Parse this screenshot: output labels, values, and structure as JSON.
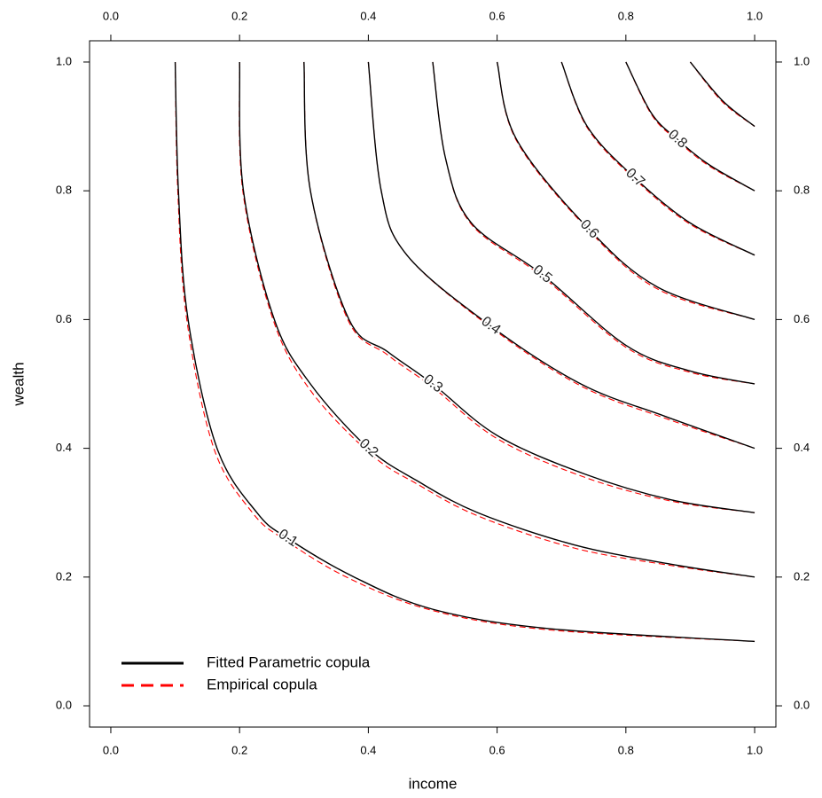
{
  "chart_data": {
    "type": "contour",
    "xlabel": "income",
    "ylabel": "wealth",
    "xlim": [
      -0.033,
      1.033
    ],
    "ylim": [
      -0.033,
      1.033
    ],
    "xticks": [
      {
        "value": 0,
        "label": "0.0"
      },
      {
        "value": 0.2,
        "label": "0.2"
      },
      {
        "value": 0.4,
        "label": "0.4"
      },
      {
        "value": 0.6,
        "label": "0.6"
      },
      {
        "value": 0.8,
        "label": "0.8"
      },
      {
        "value": 1,
        "label": "1.0"
      }
    ],
    "yticks": [
      {
        "value": 0,
        "label": "0.0"
      },
      {
        "value": 0.2,
        "label": "0.2"
      },
      {
        "value": 0.4,
        "label": "0.4"
      },
      {
        "value": 0.6,
        "label": "0.6"
      },
      {
        "value": 0.8,
        "label": "0.8"
      },
      {
        "value": 1,
        "label": "1.0"
      }
    ],
    "legend": "lower left",
    "series": [
      {
        "name": "Fitted Parametric copula",
        "color": "#000000",
        "dashed": false,
        "contours": [
          {
            "level": 0.1,
            "labeled": true,
            "x": [
              0.1,
              0.105,
              0.12,
              0.165,
              0.227,
              0.275,
              0.378,
              0.5,
              0.68,
              1.0
            ],
            "y": [
              1.0,
              0.8,
              0.6,
              0.4,
              0.3,
              0.26,
              0.2,
              0.15,
              0.12,
              0.1
            ]
          },
          {
            "level": 0.2,
            "labeled": true,
            "x": [
              0.2,
              0.206,
              0.254,
              0.31,
              0.4,
              0.475,
              0.57,
              0.72,
              0.87,
              1.0
            ],
            "y": [
              1.0,
              0.8,
              0.6,
              0.5,
              0.4,
              0.35,
              0.3,
              0.25,
              0.22,
              0.2
            ]
          },
          {
            "level": 0.3,
            "labeled": true,
            "x": [
              0.3,
              0.31,
              0.37,
              0.43,
              0.5,
              0.6,
              0.736,
              0.87,
              1.0
            ],
            "y": [
              1.0,
              0.8,
              0.6,
              0.55,
              0.5,
              0.42,
              0.36,
              0.32,
              0.3
            ]
          },
          {
            "level": 0.4,
            "labeled": true,
            "x": [
              0.4,
              0.42,
              0.46,
              0.59,
              0.73,
              0.86,
              1.0
            ],
            "y": [
              1.0,
              0.8,
              0.7,
              0.59,
              0.5,
              0.45,
              0.4
            ]
          },
          {
            "level": 0.5,
            "labeled": true,
            "x": [
              0.5,
              0.52,
              0.56,
              0.67,
              0.8,
              0.9,
              1.0
            ],
            "y": [
              1.0,
              0.85,
              0.75,
              0.67,
              0.56,
              0.52,
              0.5
            ]
          },
          {
            "level": 0.6,
            "labeled": true,
            "x": [
              0.6,
              0.63,
              0.743,
              0.85,
              1.0
            ],
            "y": [
              1.0,
              0.88,
              0.74,
              0.65,
              0.6
            ]
          },
          {
            "level": 0.7,
            "labeled": true,
            "x": [
              0.7,
              0.74,
              0.814,
              0.9,
              1.0
            ],
            "y": [
              1.0,
              0.9,
              0.82,
              0.75,
              0.7
            ]
          },
          {
            "level": 0.8,
            "labeled": true,
            "x": [
              0.8,
              0.84,
              0.88,
              0.93,
              1.0
            ],
            "y": [
              1.0,
              0.92,
              0.88,
              0.84,
              0.8
            ]
          },
          {
            "level": 0.9,
            "labeled": false,
            "x": [
              0.9,
              0.95,
              1.0
            ],
            "y": [
              1.0,
              0.94,
              0.9
            ]
          }
        ]
      },
      {
        "name": "Empirical copula",
        "color": "#ff0000",
        "dashed": true,
        "contours": [
          {
            "level": 0.1,
            "labeled": false,
            "x": [
              0.1,
              0.104,
              0.118,
              0.16,
              0.22,
              0.27,
              0.37,
              0.5,
              0.68,
              1.0
            ],
            "y": [
              1.0,
              0.8,
              0.6,
              0.4,
              0.3,
              0.258,
              0.198,
              0.148,
              0.118,
              0.1
            ]
          },
          {
            "level": 0.2,
            "labeled": false,
            "x": [
              0.2,
              0.205,
              0.252,
              0.31,
              0.405,
              0.475,
              0.57,
              0.72,
              0.87,
              1.0
            ],
            "y": [
              1.0,
              0.8,
              0.6,
              0.49,
              0.39,
              0.345,
              0.295,
              0.245,
              0.218,
              0.2
            ]
          },
          {
            "level": 0.3,
            "labeled": false,
            "x": [
              0.3,
              0.31,
              0.368,
              0.43,
              0.5,
              0.6,
              0.736,
              0.87,
              1.0
            ],
            "y": [
              1.0,
              0.8,
              0.6,
              0.545,
              0.495,
              0.415,
              0.355,
              0.318,
              0.3
            ]
          },
          {
            "level": 0.4,
            "labeled": false,
            "x": [
              0.4,
              0.42,
              0.46,
              0.59,
              0.73,
              0.86,
              1.0
            ],
            "y": [
              1.0,
              0.8,
              0.7,
              0.588,
              0.497,
              0.447,
              0.4
            ]
          },
          {
            "level": 0.5,
            "labeled": false,
            "x": [
              0.5,
              0.52,
              0.56,
              0.67,
              0.8,
              0.9,
              1.0
            ],
            "y": [
              1.0,
              0.85,
              0.748,
              0.667,
              0.557,
              0.518,
              0.5
            ]
          },
          {
            "level": 0.6,
            "labeled": false,
            "x": [
              0.6,
              0.63,
              0.743,
              0.85,
              1.0
            ],
            "y": [
              1.0,
              0.878,
              0.738,
              0.647,
              0.6
            ]
          },
          {
            "level": 0.7,
            "labeled": false,
            "x": [
              0.7,
              0.74,
              0.814,
              0.9,
              1.0
            ],
            "y": [
              1.0,
              0.898,
              0.818,
              0.748,
              0.7
            ]
          },
          {
            "level": 0.8,
            "labeled": false,
            "x": [
              0.8,
              0.84,
              0.88,
              0.93,
              1.0
            ],
            "y": [
              1.0,
              0.918,
              0.878,
              0.838,
              0.8
            ]
          },
          {
            "level": 0.9,
            "labeled": false,
            "x": [
              0.9,
              0.95,
              1.0
            ],
            "y": [
              1.0,
              0.938,
              0.9
            ]
          }
        ]
      }
    ]
  }
}
